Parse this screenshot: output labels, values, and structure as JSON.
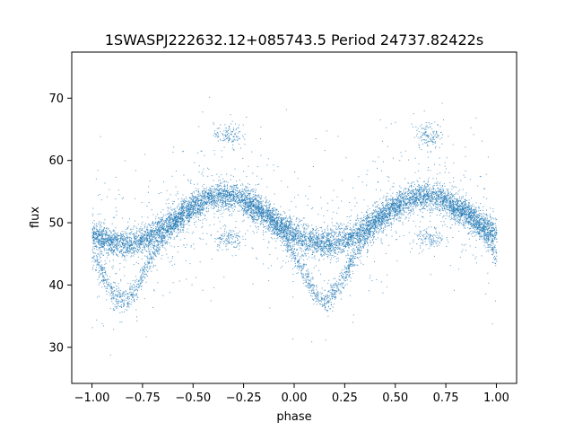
{
  "chart_data": {
    "type": "scatter",
    "title": "1SWASPJ222632.12+085743.5 Period 24737.82422s",
    "xlabel": "phase",
    "ylabel": "flux",
    "xlim": [
      -1.1,
      1.1
    ],
    "ylim": [
      24.2,
      77.4
    ],
    "xticks": [
      -1.0,
      -0.75,
      -0.5,
      -0.25,
      0.0,
      0.25,
      0.5,
      0.75,
      1.0
    ],
    "xtick_labels": [
      "−1.00",
      "−0.75",
      "−0.50",
      "−0.25",
      "0.00",
      "0.25",
      "0.50",
      "0.75",
      "1.00"
    ],
    "yticks": [
      30,
      40,
      50,
      60,
      70
    ],
    "ytick_labels": [
      "30",
      "40",
      "50",
      "60",
      "70"
    ],
    "grid": false,
    "series_color": "#1f77b4",
    "light_curve": {
      "phase_range": [
        -1.0,
        1.0
      ],
      "upper_branch": {
        "baseline": 50.5,
        "amplitude": 3.8,
        "max_phase": [
          -0.35,
          0.65
        ],
        "min_phase": [
          -0.85,
          0.15
        ],
        "min_value": 47.0,
        "scatter": 1.1
      },
      "lower_branch": {
        "dip_phase": [
          -0.85,
          0.15
        ],
        "dip_value": 38.5,
        "dip_halfwidth": 0.18,
        "scatter": 1.0
      },
      "outlier_clusters": [
        {
          "phase": -0.33,
          "flux": 64.2
        },
        {
          "phase": 0.67,
          "flux": 64.2
        },
        {
          "phase": -0.33,
          "flux": 47.5
        },
        {
          "phase": 0.67,
          "flux": 47.5
        }
      ]
    }
  }
}
